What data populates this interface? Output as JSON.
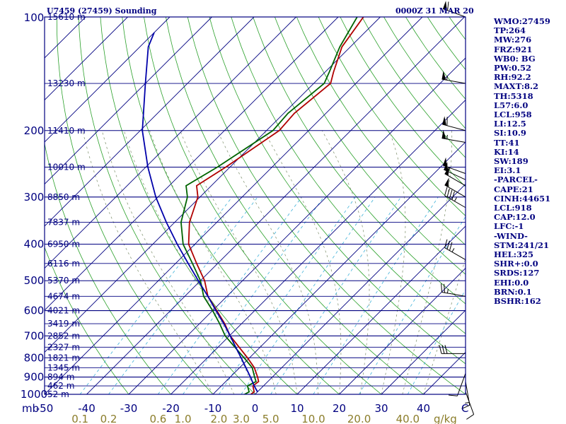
{
  "header": {
    "station": "U7459 (27459) Sounding",
    "time": "0000Z 31 MAR 20"
  },
  "indices": [
    "WMO:27459",
    "TP:264",
    "MW:276",
    "FRZ:921",
    "WB0: BG",
    "PW:0.52",
    "RH:92.2",
    "MAXT:8.2",
    "TH:5318",
    "L57:6.0",
    "LCL:958",
    "LI:12.5",
    "SI:10.9",
    "TT:41",
    "KI:14",
    "SW:189",
    "EI:3.1",
    "-PARCEL-",
    "CAPE:21",
    "CINH:44651",
    "LCL:918",
    "CAP:12.0",
    "LFC:-1",
    "-WIND-",
    "STM:241/21",
    "HEL:325",
    "SHR+:0.0",
    "SRDS:127",
    "EHI:0.0",
    "BRN:0.1",
    "BSHR:162"
  ],
  "chart_data": {
    "type": "line",
    "title": "U7459 (27459) Sounding",
    "xlabel": "C",
    "ylabel": "mb",
    "xlim": [
      -50,
      50
    ],
    "ylim": [
      1000,
      100
    ],
    "y_scale": "log",
    "skew": true,
    "pressure_ticks": [
      "100",
      "200",
      "300",
      "400",
      "500",
      "600",
      "700",
      "800",
      "900",
      "1000"
    ],
    "temperature_ticks": [
      "-50",
      "-40",
      "-30",
      "-20",
      "-10",
      "0",
      "10",
      "20",
      "30",
      "40"
    ],
    "temperature_unit": "C",
    "mixing_ratio_ticks": [
      "0.1",
      "0.2",
      "0.6",
      "1.0",
      "2.0",
      "3.0",
      "5.0",
      "10.0",
      "20.0",
      "40.0"
    ],
    "mixing_ratio_unit": "g/kg",
    "height_labels": [
      {
        "p": 100,
        "label": "15610 m"
      },
      {
        "p": 150,
        "label": "13230 m"
      },
      {
        "p": 200,
        "label": "11410 m"
      },
      {
        "p": 250,
        "label": "10010 m"
      },
      {
        "p": 300,
        "label": "8850 m"
      },
      {
        "p": 350,
        "label": "7837 m"
      },
      {
        "p": 400,
        "label": "6950 m"
      },
      {
        "p": 450,
        "label": "6116 m"
      },
      {
        "p": 500,
        "label": "5370 m"
      },
      {
        "p": 550,
        "label": "4674 m"
      },
      {
        "p": 600,
        "label": "4021 m"
      },
      {
        "p": 650,
        "label": "3419 m"
      },
      {
        "p": 700,
        "label": "2852 m"
      },
      {
        "p": 750,
        "label": "2327 m"
      },
      {
        "p": 800,
        "label": "1821 m"
      },
      {
        "p": 850,
        "label": "1345 m"
      },
      {
        "p": 900,
        "label": "894 m"
      },
      {
        "p": 950,
        "label": "462 m"
      },
      {
        "p": 1000,
        "label": "52 m"
      }
    ],
    "series": [
      {
        "color": "#b00000",
        "points": [
          [
            1000,
            -1.0
          ],
          [
            985,
            -0.8
          ],
          [
            950,
            -2.5
          ],
          [
            925,
            -2.2
          ],
          [
            900,
            -3.5
          ],
          [
            850,
            -6.5
          ],
          [
            800,
            -10.5
          ],
          [
            750,
            -15.0
          ],
          [
            700,
            -19.8
          ],
          [
            650,
            -24.0
          ],
          [
            600,
            -29.0
          ],
          [
            550,
            -34.5
          ],
          [
            500,
            -39.0
          ],
          [
            450,
            -45.0
          ],
          [
            400,
            -51.5
          ],
          [
            350,
            -56.5
          ],
          [
            300,
            -60.5
          ],
          [
            280,
            -63.5
          ],
          [
            250,
            -61.0
          ],
          [
            200,
            -57.0
          ],
          [
            180,
            -57.5
          ],
          [
            150,
            -56.0
          ],
          [
            140,
            -58.0
          ],
          [
            120,
            -62.0
          ],
          [
            100,
            -64.0
          ]
        ]
      },
      {
        "color": "#006400",
        "points": [
          [
            1000,
            -2.5
          ],
          [
            985,
            -2.0
          ],
          [
            950,
            -3.8
          ],
          [
            925,
            -2.8
          ],
          [
            900,
            -4.2
          ],
          [
            850,
            -7.0
          ],
          [
            800,
            -11.3
          ],
          [
            750,
            -16.0
          ],
          [
            700,
            -21.0
          ],
          [
            650,
            -25.2
          ],
          [
            600,
            -30.0
          ],
          [
            550,
            -35.5
          ],
          [
            500,
            -40.0
          ],
          [
            450,
            -46.0
          ],
          [
            400,
            -52.8
          ],
          [
            350,
            -58.5
          ],
          [
            300,
            -63.0
          ],
          [
            280,
            -66.0
          ],
          [
            250,
            -63.0
          ],
          [
            200,
            -58.5
          ],
          [
            180,
            -59.0
          ],
          [
            150,
            -57.5
          ],
          [
            140,
            -59.0
          ],
          [
            120,
            -62.5
          ],
          [
            100,
            -65.5
          ]
        ]
      },
      {
        "color": "#0000aa",
        "points": [
          [
            985,
            0.0
          ],
          [
            950,
            -2.2
          ],
          [
            900,
            -5.2
          ],
          [
            850,
            -8.5
          ],
          [
            800,
            -12.0
          ],
          [
            750,
            -15.8
          ],
          [
            700,
            -19.8
          ],
          [
            650,
            -24.2
          ],
          [
            600,
            -29.2
          ],
          [
            550,
            -34.5
          ],
          [
            500,
            -40.5
          ],
          [
            450,
            -47.0
          ],
          [
            400,
            -54.2
          ],
          [
            350,
            -62.0
          ],
          [
            300,
            -70.5
          ],
          [
            250,
            -79.5
          ],
          [
            200,
            -89.5
          ],
          [
            150,
            -100.0
          ],
          [
            120,
            -108.0
          ],
          [
            110,
            -110.0
          ]
        ]
      }
    ],
    "wind_barbs": [
      {
        "p": 100,
        "dir": 290,
        "spd": 60
      },
      {
        "p": 150,
        "dir": 280,
        "spd": 55
      },
      {
        "p": 200,
        "dir": 285,
        "spd": 60
      },
      {
        "p": 215,
        "dir": 280,
        "spd": 55
      },
      {
        "p": 260,
        "dir": 290,
        "spd": 50
      },
      {
        "p": 270,
        "dir": 295,
        "spd": 55
      },
      {
        "p": 280,
        "dir": 300,
        "spd": 50
      },
      {
        "p": 300,
        "dir": 300,
        "spd": 50
      },
      {
        "p": 320,
        "dir": 300,
        "spd": 45
      },
      {
        "p": 440,
        "dir": 300,
        "spd": 35
      },
      {
        "p": 550,
        "dir": 280,
        "spd": 25
      },
      {
        "p": 780,
        "dir": 270,
        "spd": 30
      },
      {
        "p": 880,
        "dir": 200,
        "spd": 10
      },
      {
        "p": 925,
        "dir": 170,
        "spd": 15
      },
      {
        "p": 985,
        "dir": 160,
        "spd": 10
      }
    ]
  }
}
